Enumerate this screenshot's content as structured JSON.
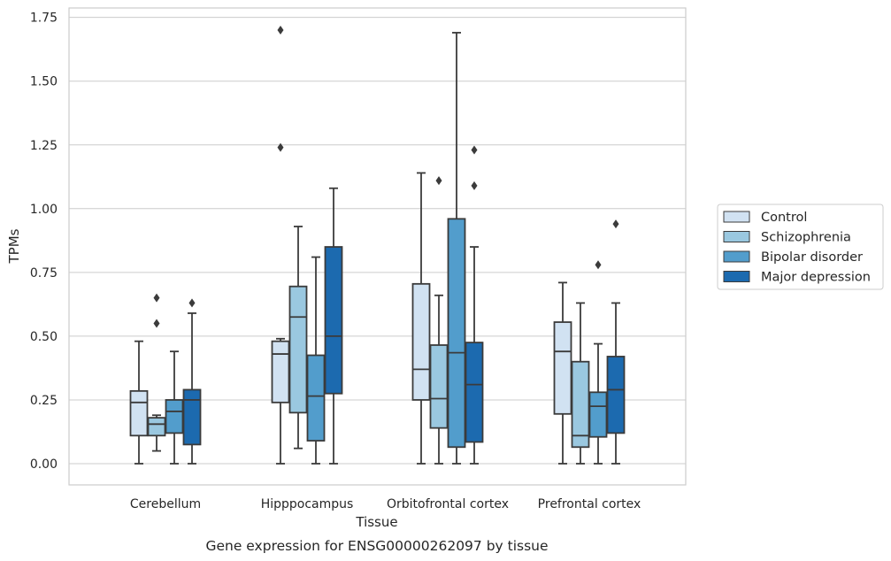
{
  "chart_data": {
    "type": "box",
    "xlabel": "Tissue",
    "ylabel": "TPMs",
    "caption": "Gene expression for ENSG00000262097 by tissue",
    "ylim": [
      -0.08,
      1.78
    ],
    "yticks": [
      "0.00",
      "0.25",
      "0.50",
      "0.75",
      "1.00",
      "1.25",
      "1.50",
      "1.75"
    ],
    "ytick_values": [
      0,
      0.25,
      0.5,
      0.75,
      1.0,
      1.25,
      1.5,
      1.75
    ],
    "categories": [
      "Cerebellum",
      "Hipppocampus",
      "Orbitofrontal cortex",
      "Prefrontal cortex"
    ],
    "grid": true,
    "legend_position": "right",
    "series": [
      {
        "name": "Control",
        "color": "#d1e2f2",
        "boxes": [
          {
            "whislo": 0.0,
            "q1": 0.11,
            "med": 0.24,
            "q3": 0.285,
            "whishi": 0.48,
            "fliers": []
          },
          {
            "whislo": 0.0,
            "q1": 0.24,
            "med": 0.43,
            "q3": 0.48,
            "whishi": 0.49,
            "fliers": [
              1.24,
              1.7
            ]
          },
          {
            "whislo": 0.0,
            "q1": 0.25,
            "med": 0.37,
            "q3": 0.705,
            "whishi": 1.14,
            "fliers": []
          },
          {
            "whislo": 0.0,
            "q1": 0.195,
            "med": 0.44,
            "q3": 0.555,
            "whishi": 0.71,
            "fliers": []
          }
        ]
      },
      {
        "name": "Schizophrenia",
        "color": "#9ac8e0",
        "boxes": [
          {
            "whislo": 0.05,
            "q1": 0.11,
            "med": 0.155,
            "q3": 0.18,
            "whishi": 0.19,
            "fliers": [
              0.55,
              0.65
            ]
          },
          {
            "whislo": 0.06,
            "q1": 0.2,
            "med": 0.575,
            "q3": 0.695,
            "whishi": 0.93,
            "fliers": []
          },
          {
            "whislo": 0.0,
            "q1": 0.14,
            "med": 0.255,
            "q3": 0.465,
            "whishi": 0.66,
            "fliers": [
              1.11
            ]
          },
          {
            "whislo": 0.0,
            "q1": 0.065,
            "med": 0.11,
            "q3": 0.4,
            "whishi": 0.63,
            "fliers": []
          }
        ]
      },
      {
        "name": "Bipolar disorder",
        "color": "#529dcc",
        "boxes": [
          {
            "whislo": 0.0,
            "q1": 0.12,
            "med": 0.205,
            "q3": 0.25,
            "whishi": 0.44,
            "fliers": []
          },
          {
            "whislo": 0.0,
            "q1": 0.09,
            "med": 0.265,
            "q3": 0.425,
            "whishi": 0.81,
            "fliers": []
          },
          {
            "whislo": 0.0,
            "q1": 0.065,
            "med": 0.435,
            "q3": 0.96,
            "whishi": 1.69,
            "fliers": []
          },
          {
            "whislo": 0.0,
            "q1": 0.105,
            "med": 0.225,
            "q3": 0.28,
            "whishi": 0.47,
            "fliers": [
              0.78
            ]
          }
        ]
      },
      {
        "name": "Major depression",
        "color": "#1c6aaf",
        "boxes": [
          {
            "whislo": 0.0,
            "q1": 0.075,
            "med": 0.25,
            "q3": 0.29,
            "whishi": 0.59,
            "fliers": [
              0.63
            ]
          },
          {
            "whislo": 0.0,
            "q1": 0.275,
            "med": 0.5,
            "q3": 0.85,
            "whishi": 1.08,
            "fliers": []
          },
          {
            "whislo": 0.0,
            "q1": 0.085,
            "med": 0.31,
            "q3": 0.475,
            "whishi": 0.85,
            "fliers": [
              1.09,
              1.23
            ]
          },
          {
            "whislo": 0.0,
            "q1": 0.12,
            "med": 0.29,
            "q3": 0.42,
            "whishi": 0.63,
            "fliers": [
              0.94
            ]
          }
        ]
      }
    ]
  }
}
